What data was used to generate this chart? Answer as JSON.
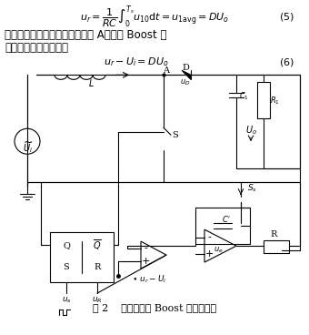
{
  "title": "图 2    单周期控制 Boost 电路原理图",
  "formula1": "$u_r = \\dfrac{1}{RC}\\int_0^{T_s} u_{10}\\mathrm{d}t = u_{\\mathrm{1avg}} = DU_o$",
  "formula1_num": "(5)",
  "formula2": "$u_r - U_i = DU_o$",
  "formula2_num": "(6)",
  "text1": "由于二极管电压的电压参考点是 A，所以 Boost 电",
  "text2": "路的单周期控制规则为",
  "bg_color": "#ffffff",
  "line_color": "#000000",
  "text_color": "#000000"
}
